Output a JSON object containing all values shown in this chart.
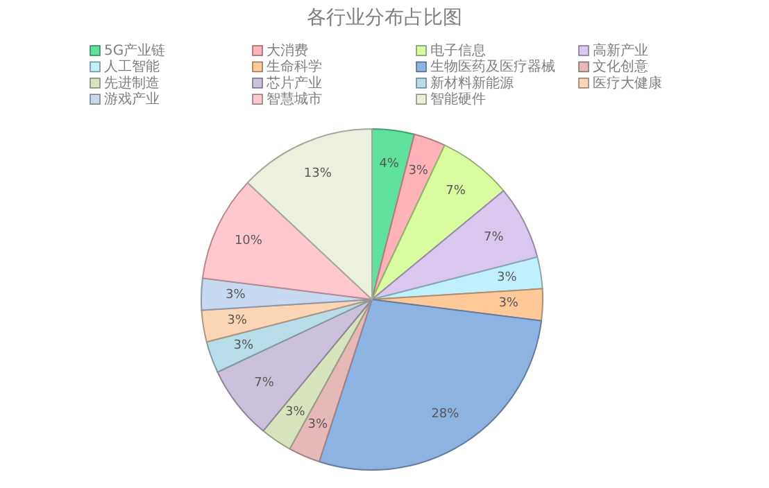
{
  "chart_data": {
    "type": "pie",
    "title": "各行业分布占比图",
    "categories": [
      "5G产业链",
      "大消费",
      "电子信息",
      "高新产业",
      "人工智能",
      "生命科学",
      "生物医药及医疗器械",
      "文化创意",
      "先进制造",
      "芯片产业",
      "新材料新能源",
      "医疗大健康",
      "游戏产业",
      "智慧城市",
      "智能硬件"
    ],
    "values": [
      4,
      3,
      7,
      7,
      3,
      3,
      28,
      3,
      3,
      7,
      3,
      3,
      3,
      10,
      13
    ],
    "value_labels": [
      "4%",
      "3%",
      "7%",
      "7%",
      "3%",
      "3%",
      "28%",
      "3%",
      "3%",
      "7%",
      "3%",
      "3%",
      "3%",
      "10%",
      "13%"
    ],
    "colors": [
      "#5ee19c",
      "#ffb3b8",
      "#d9fca0",
      "#d9c7ee",
      "#c0f0fc",
      "#ffc99a",
      "#8db3e2",
      "#e6b9b8",
      "#d7e4bd",
      "#ccc1da",
      "#b7dee8",
      "#fcd5b4",
      "#c6d9f1",
      "#ffc7ce",
      "#ebf1de"
    ],
    "legend": "top"
  }
}
